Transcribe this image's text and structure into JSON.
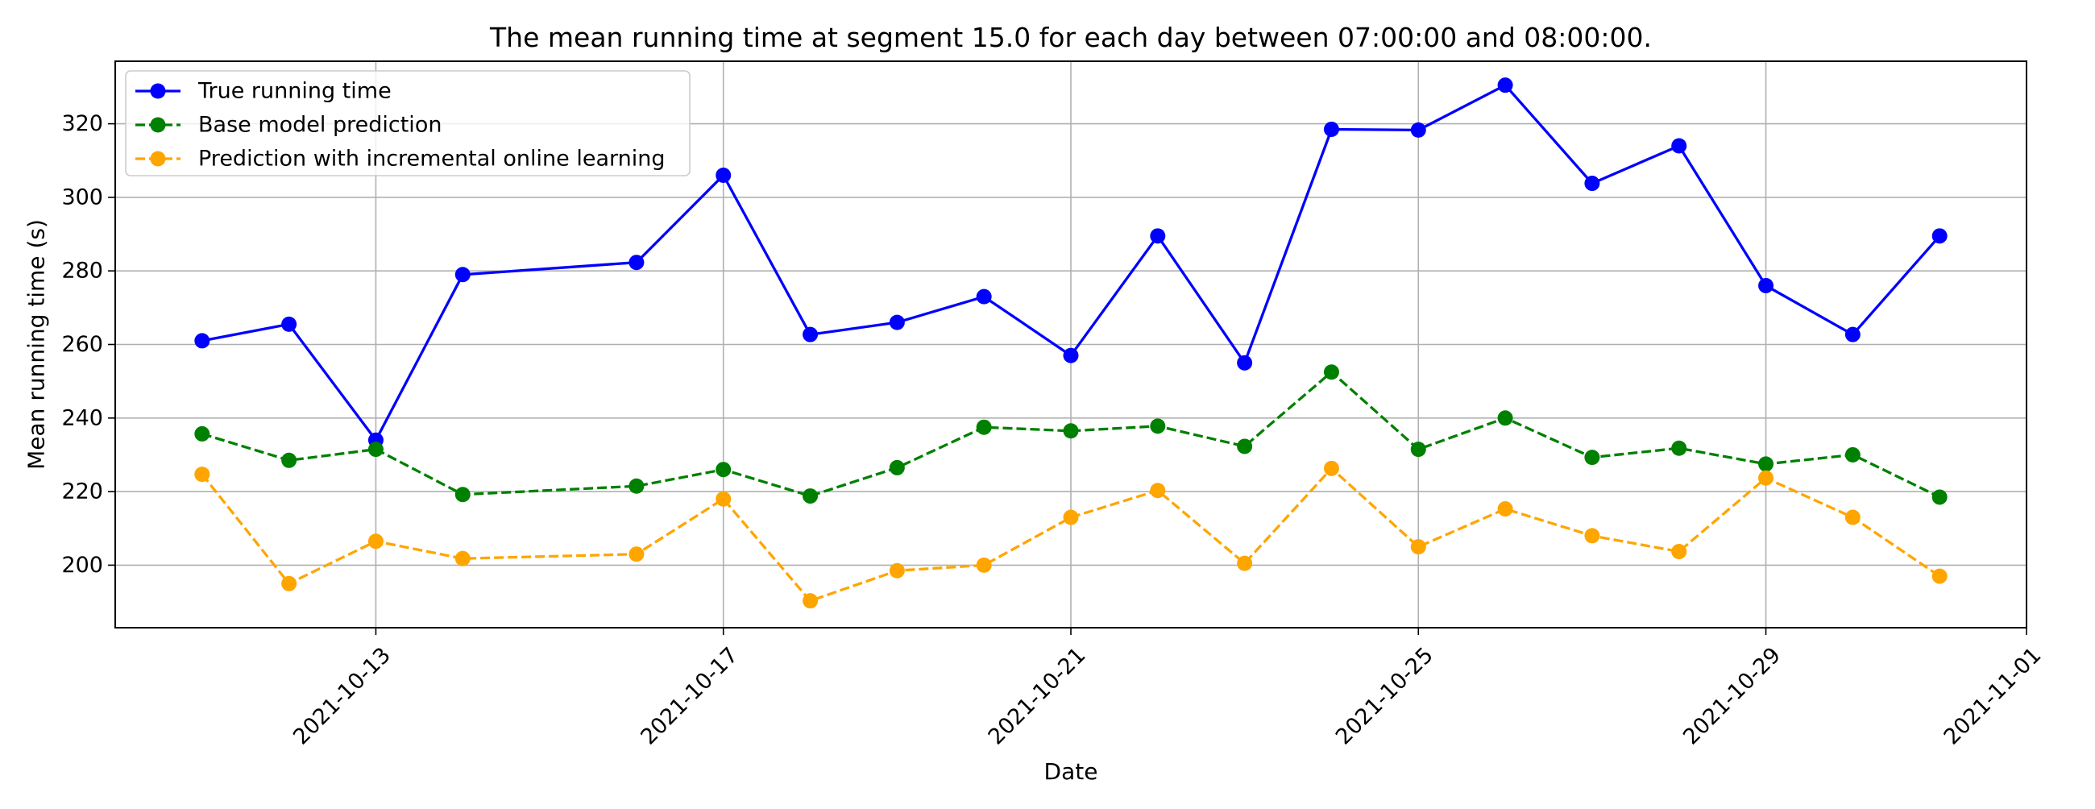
{
  "chart_data": {
    "type": "line",
    "title": "The mean running time at segment 15.0 for each day between 07:00:00 and 08:00:00.",
    "xlabel": "Date",
    "ylabel": "Mean running time (s)",
    "xlim": [
      "2021-10-10",
      "2021-11-01"
    ],
    "ylim": [
      183,
      337
    ],
    "x_ticks": [
      "2021-10-13",
      "2021-10-17",
      "2021-10-21",
      "2021-10-25",
      "2021-10-29",
      "2021-11-01"
    ],
    "y_ticks": [
      200,
      220,
      240,
      260,
      280,
      300,
      320
    ],
    "grid": true,
    "legend_position": "top-left",
    "x": [
      "2021-10-11",
      "2021-10-12",
      "2021-10-13",
      "2021-10-14",
      "2021-10-16",
      "2021-10-17",
      "2021-10-18",
      "2021-10-19",
      "2021-10-20",
      "2021-10-21",
      "2021-10-22",
      "2021-10-23",
      "2021-10-24",
      "2021-10-25",
      "2021-10-26",
      "2021-10-27",
      "2021-10-28",
      "2021-10-29",
      "2021-10-30",
      "2021-10-31"
    ],
    "series": [
      {
        "name": "True running time",
        "color": "#0000ff",
        "style": "solid",
        "values": [
          261,
          265.5,
          234,
          279,
          282.3,
          306,
          262.7,
          266,
          273,
          257,
          289.5,
          255,
          318.5,
          318.3,
          330.5,
          303.8,
          314,
          276,
          262.7,
          289.5
        ]
      },
      {
        "name": "Base model prediction",
        "color": "#008000",
        "style": "dashed",
        "values": [
          235.7,
          228.5,
          231.5,
          219.2,
          221.5,
          226,
          218.8,
          226.5,
          237.5,
          236.5,
          237.8,
          232.3,
          252.5,
          231.5,
          240,
          229.3,
          231.8,
          227.5,
          230,
          218.5
        ]
      },
      {
        "name": "Prediction with incremental online learning",
        "color": "#ffa500",
        "style": "dashed",
        "values": [
          224.7,
          195,
          206.5,
          201.8,
          203,
          218,
          190.3,
          198.5,
          200,
          213,
          220.3,
          200.5,
          226.3,
          205,
          215.3,
          208,
          203.7,
          223.7,
          213,
          197
        ]
      }
    ]
  }
}
